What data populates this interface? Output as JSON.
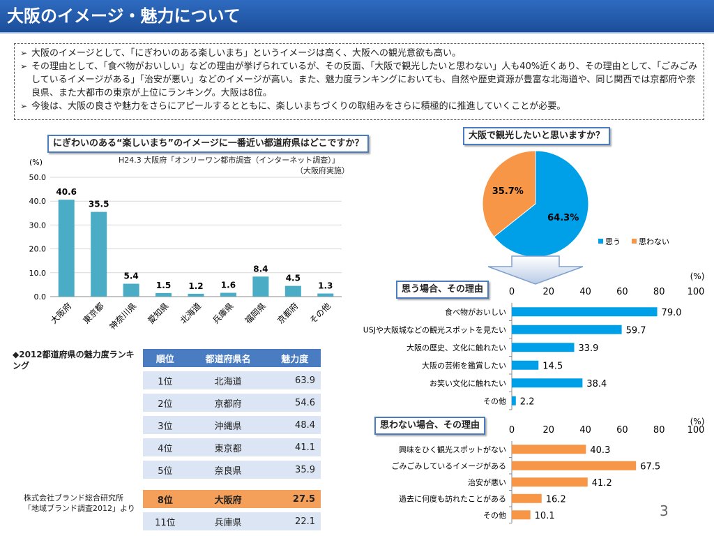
{
  "header": {
    "title": "大阪のイメージ・魅力について"
  },
  "summary": [
    "大阪のイメージとして、「にぎわいのある楽しいまち」というイメージは高く、大阪への観光意欲も高い。",
    "その理由として、「食べ物がおいしい」などの理由が挙げられているが、その反面、「大阪で観光したいと思わない」人も40%近くあり、その理由として、「ごみごみしているイメージがある」「治安が悪い」などのイメージが高い。また、魅力度ランキングにおいても、自然や歴史資源が豊富な北海道や、同じ関西では京都府や奈良県、また大都市の東京が上位にランキング。大阪は8位。",
    "今後は、大阪の良さや魅力をさらにアピールするとともに、楽しいまちづくりの取組みをさらに積極的に推進していくことが必要。"
  ],
  "bar_question": "にぎわいのある“楽しいまち”のイメージに一番近い都道府県はどこですか？",
  "bar_source_1": "H24.3 大阪府「オンリーワン都市調査（インターネット調査）」",
  "bar_source_2": "（大阪府実施）",
  "pie_question": "大阪で観光したいと思いますか？",
  "reason_yes_title": "思う場合、その理由",
  "reason_no_title": "思わない場合、その理由",
  "ranking": {
    "title": "◆2012都道府県の魅力度ランキング",
    "headers": [
      "順位",
      "都道府県名",
      "魅力度"
    ],
    "rows": [
      [
        "1位",
        "北海道",
        "63.9"
      ],
      [
        "2位",
        "京都府",
        "54.6"
      ],
      [
        "3位",
        "沖縄県",
        "48.4"
      ],
      [
        "4位",
        "東京都",
        "41.1"
      ],
      [
        "5位",
        "奈良県",
        "35.9"
      ]
    ],
    "highlight": [
      "8位",
      "大阪府",
      "27.5"
    ],
    "last": [
      "11位",
      "兵庫県",
      "22.1"
    ],
    "source_1": "株式会社ブランド総合研究所",
    "source_2": "「地域ブランド調査2012」より"
  },
  "page_number": "3",
  "colors": {
    "bar": "#4bacc6",
    "yes": "#00a0e9",
    "no": "#f79646",
    "header": "#1f5aa8",
    "box_border": "#4a7cc2"
  },
  "chart_data": [
    {
      "type": "bar",
      "ylabel": "(%)",
      "ylim": [
        0,
        50
      ],
      "yticks": [
        "0.0",
        "10.0",
        "20.0",
        "30.0",
        "40.0",
        "50.0"
      ],
      "categories": [
        "大阪府",
        "東京都",
        "神奈川県",
        "愛知県",
        "北海道",
        "兵庫県",
        "福岡県",
        "京都府",
        "その他"
      ],
      "values": [
        40.6,
        35.5,
        5.4,
        1.5,
        1.2,
        1.6,
        8.4,
        4.5,
        1.3
      ],
      "labels": [
        "40.6",
        "35.5",
        "5.4",
        "1.5",
        "1.2",
        "1.6",
        "8.4",
        "4.5",
        "1.3"
      ]
    },
    {
      "type": "pie",
      "series": [
        {
          "name": "思う",
          "value": 64.3,
          "label": "64.3%"
        },
        {
          "name": "思わない",
          "value": 35.7,
          "label": "35.7%"
        }
      ],
      "legend": "bottom-right"
    },
    {
      "type": "bar",
      "orientation": "horizontal",
      "unit": "(%)",
      "xlim": [
        0,
        100
      ],
      "xticks": [
        "0",
        "20",
        "40",
        "60",
        "80",
        "100"
      ],
      "categories": [
        "食べ物がおいしい",
        "USJや大阪城などの観光スポットを見たい",
        "大阪の歴史、文化に触れたい",
        "大阪の芸術を鑑賞したい",
        "お笑い文化に触れたい",
        "その他"
      ],
      "values": [
        79.0,
        59.7,
        33.9,
        14.5,
        38.4,
        2.2
      ],
      "labels": [
        "79.0",
        "59.7",
        "33.9",
        "14.5",
        "38.4",
        "2.2"
      ]
    },
    {
      "type": "bar",
      "orientation": "horizontal",
      "unit": "(%)",
      "xlim": [
        0,
        100
      ],
      "xticks": [
        "0",
        "20",
        "40",
        "60",
        "80",
        "100"
      ],
      "categories": [
        "興味をひく観光スポットがない",
        "ごみごみしているイメージがある",
        "治安が悪い",
        "過去に何度も訪れたことがある",
        "その他"
      ],
      "values": [
        40.3,
        67.5,
        41.2,
        16.2,
        10.1
      ],
      "labels": [
        "40.3",
        "67.5",
        "41.2",
        "16.2",
        "10.1"
      ]
    }
  ]
}
